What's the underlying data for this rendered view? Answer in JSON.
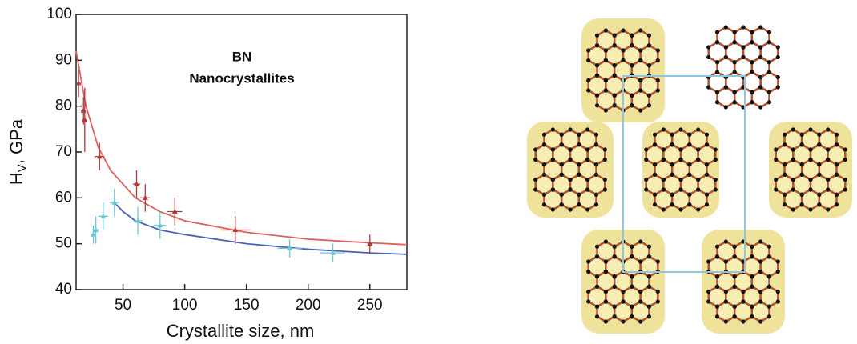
{
  "chart_data": {
    "type": "scatter",
    "annotation": [
      "BN",
      "Nanocrystallites"
    ],
    "xlabel": "Crystallite size, nm",
    "ylabel": [
      "H",
      "V",
      ", GPa"
    ],
    "xlim": [
      12,
      280
    ],
    "ylim": [
      40,
      100
    ],
    "xticks": [
      50,
      100,
      150,
      200,
      250
    ],
    "yticks": [
      40,
      50,
      60,
      70,
      80,
      90,
      100
    ],
    "series": [
      {
        "color": "#b03a3a",
        "x": [
          14,
          18,
          19,
          31,
          61,
          68,
          92,
          141,
          250
        ],
        "values": [
          85,
          79,
          77,
          69,
          63,
          60,
          57,
          53,
          50
        ],
        "xerr": [
          2,
          2,
          2,
          4,
          3,
          4,
          6,
          12,
          2
        ],
        "yerr": [
          3,
          3,
          7,
          3,
          3,
          3,
          3,
          3,
          2
        ]
      },
      {
        "color": "#6cc8d6",
        "x": [
          26,
          28,
          34,
          43,
          62,
          80,
          185,
          220
        ],
        "values": [
          52,
          53,
          56,
          59,
          55,
          54,
          49,
          48
        ],
        "xerr": [
          2,
          3,
          4,
          4,
          4,
          5,
          10,
          10
        ],
        "yerr": [
          2,
          3,
          3,
          3,
          3,
          3,
          2,
          2
        ]
      }
    ],
    "fits": [
      {
        "color": "#e06060",
        "x": [
          12,
          20,
          30,
          40,
          60,
          80,
          100,
          150,
          200,
          250,
          280
        ],
        "values": [
          92,
          80,
          71,
          66,
          60,
          57,
          55,
          52.5,
          51,
          50.2,
          49.8
        ]
      },
      {
        "color": "#4a63b8",
        "x": [
          43,
          50,
          60,
          80,
          100,
          150,
          200,
          250,
          280
        ],
        "values": [
          59,
          57,
          55,
          53,
          52,
          50,
          48.8,
          48,
          47.7
        ]
      }
    ]
  }
}
